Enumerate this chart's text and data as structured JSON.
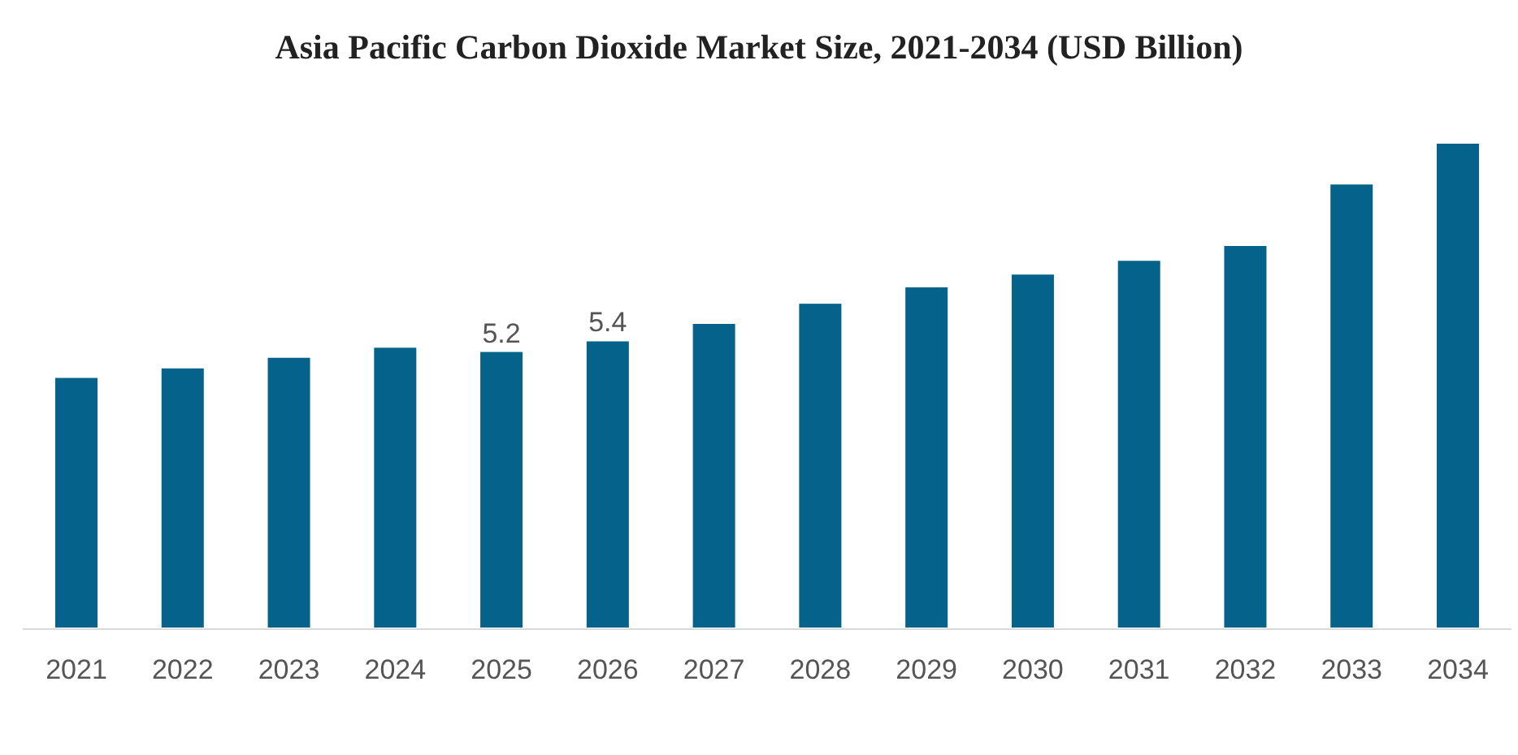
{
  "chart_data": {
    "type": "bar",
    "title": "Asia Pacific Carbon Dioxide Market Size, 2021-2034 (USD Billion)",
    "categories": [
      "2021",
      "2022",
      "2023",
      "2024",
      "2025",
      "2026",
      "2027",
      "2028",
      "2029",
      "2030",
      "2031",
      "2032",
      "2033",
      "2034"
    ],
    "values": [
      4.71,
      4.89,
      5.09,
      5.28,
      5.2,
      5.4,
      5.73,
      6.11,
      6.42,
      6.66,
      6.92,
      7.2,
      8.36,
      9.13
    ],
    "value_labels": [
      null,
      null,
      null,
      null,
      "5.2",
      "5.4",
      null,
      null,
      null,
      null,
      null,
      null,
      null,
      null
    ],
    "color": "#05628a"
  }
}
